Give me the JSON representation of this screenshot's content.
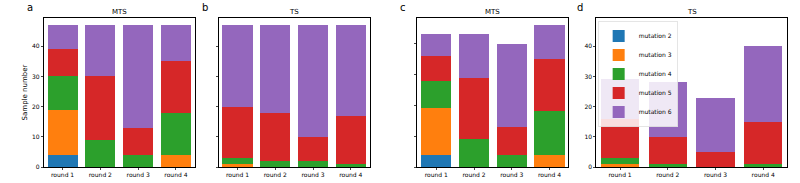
{
  "chart_data": [
    {
      "type": "bar",
      "stacked": true,
      "title": "MTS",
      "annotation": "a",
      "y_label": "Sample number",
      "categories": [
        "round 1",
        "round 2",
        "round 3",
        "round 4"
      ],
      "ylim": [
        0,
        49.35
      ],
      "yticks": [
        0,
        10,
        20,
        30,
        40
      ],
      "series": [
        {
          "name": "mutation 2",
          "color": "#1f77b4",
          "values": [
            4,
            0,
            0,
            0
          ]
        },
        {
          "name": "mutation 3",
          "color": "#ff7f0e",
          "values": [
            15,
            0,
            0,
            4
          ]
        },
        {
          "name": "mutation 4",
          "color": "#2ca02c",
          "values": [
            11,
            9,
            4,
            14
          ]
        },
        {
          "name": "mutation 5",
          "color": "#d62728",
          "values": [
            9,
            21,
            9,
            17
          ]
        },
        {
          "name": "mutation 6",
          "color": "#9467bd",
          "values": [
            8,
            17,
            34,
            12
          ]
        }
      ]
    },
    {
      "type": "bar",
      "stacked": true,
      "title": "TS",
      "annotation": "b",
      "tick_labels": "x",
      "categories": [
        "round 1",
        "round 2",
        "round 3",
        "round 4"
      ],
      "ylim": [
        0,
        49.35
      ],
      "yticks": [
        0,
        10,
        20,
        30,
        40
      ],
      "series": [
        {
          "name": "mutation 2",
          "color": "#1f77b4",
          "values": [
            0,
            0,
            0,
            0
          ]
        },
        {
          "name": "mutation 3",
          "color": "#ff7f0e",
          "values": [
            1,
            0,
            0,
            0
          ]
        },
        {
          "name": "mutation 4",
          "color": "#2ca02c",
          "values": [
            2,
            2,
            2,
            1
          ]
        },
        {
          "name": "mutation 5",
          "color": "#d62728",
          "values": [
            17,
            16,
            8,
            16
          ]
        },
        {
          "name": "mutation 6",
          "color": "#9467bd",
          "values": [
            27,
            29,
            37,
            30
          ]
        }
      ]
    },
    {
      "type": "bar",
      "stacked": true,
      "title": "MTS",
      "annotation": "c",
      "tick_labels": "x",
      "categories": [
        "round 1",
        "round 2",
        "round 3",
        "round 4"
      ],
      "ylim": [
        0,
        48.3
      ],
      "yticks": [
        0,
        10,
        20,
        30,
        40
      ],
      "series": [
        {
          "name": "mutation 2",
          "color": "#1f77b4",
          "values": [
            4,
            0,
            0,
            0
          ]
        },
        {
          "name": "mutation 3",
          "color": "#ff7f0e",
          "values": [
            15,
            0,
            0,
            4
          ]
        },
        {
          "name": "mutation 4",
          "color": "#2ca02c",
          "values": [
            9,
            9,
            4,
            14
          ]
        },
        {
          "name": "mutation 5",
          "color": "#d62728",
          "values": [
            8,
            20,
            9,
            17
          ]
        },
        {
          "name": "mutation 6",
          "color": "#9467bd",
          "values": [
            7,
            14,
            27,
            11
          ]
        }
      ]
    },
    {
      "type": "bar",
      "stacked": true,
      "title": "TS",
      "annotation": "d",
      "legend": "upper left",
      "categories": [
        "round 1",
        "round 2",
        "round 3",
        "round 4"
      ],
      "ylim": [
        0,
        49.35
      ],
      "yticks": [
        0,
        10,
        20,
        30,
        40
      ],
      "series": [
        {
          "name": "mutation 2",
          "color": "#1f77b4",
          "values": [
            0,
            0,
            0,
            0
          ]
        },
        {
          "name": "mutation 3",
          "color": "#ff7f0e",
          "values": [
            1,
            0,
            0,
            0
          ]
        },
        {
          "name": "mutation 4",
          "color": "#2ca02c",
          "values": [
            2,
            1,
            0,
            1
          ]
        },
        {
          "name": "mutation 5",
          "color": "#d62728",
          "values": [
            13,
            9,
            5,
            14
          ]
        },
        {
          "name": "mutation 6",
          "color": "#9467bd",
          "values": [
            13,
            18,
            18,
            25
          ]
        }
      ]
    }
  ]
}
